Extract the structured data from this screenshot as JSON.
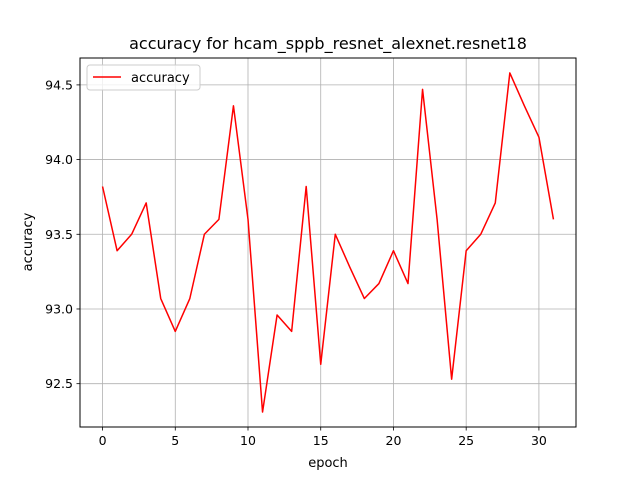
{
  "chart_data": {
    "type": "line",
    "title": "accuracy for hcam_sppb_resnet_alexnet.resnet18",
    "xlabel": "epoch",
    "ylabel": "accuracy",
    "xlim": [
      -1.55,
      32.55
    ],
    "ylim": [
      92.21,
      94.68
    ],
    "xticks": [
      0,
      5,
      10,
      15,
      20,
      25,
      30
    ],
    "yticks": [
      92.5,
      93.0,
      93.5,
      94.0,
      94.5
    ],
    "ytick_labels": [
      "92.5",
      "93.0",
      "93.5",
      "94.0",
      "94.5"
    ],
    "grid": true,
    "legend_position": "upper-left",
    "series": [
      {
        "name": "accuracy",
        "color": "#ff0000",
        "x": [
          0,
          1,
          2,
          3,
          4,
          5,
          6,
          7,
          8,
          9,
          10,
          11,
          12,
          13,
          14,
          15,
          16,
          17,
          18,
          19,
          20,
          21,
          22,
          23,
          24,
          25,
          26,
          27,
          28,
          29,
          30,
          31
        ],
        "values": [
          93.82,
          93.39,
          93.5,
          93.71,
          93.07,
          92.85,
          93.07,
          93.5,
          93.6,
          94.36,
          93.6,
          92.31,
          92.96,
          92.85,
          93.82,
          92.63,
          93.5,
          93.28,
          93.07,
          93.17,
          93.39,
          93.17,
          94.47,
          93.6,
          92.53,
          93.39,
          93.5,
          93.71,
          94.58,
          94.36,
          94.15,
          93.6
        ]
      }
    ]
  }
}
